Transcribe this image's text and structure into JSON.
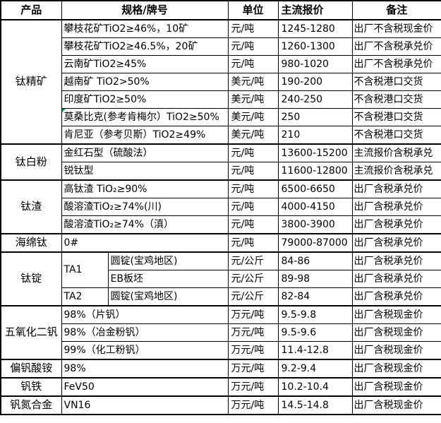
{
  "colors": {
    "grid": "#000000",
    "background": "#ffffff",
    "text": "#000000",
    "error_indicator": "#00a550"
  },
  "table": {
    "headers": {
      "product": "产品",
      "spec": "规格/牌号",
      "unit": "单位",
      "price": "主流报价",
      "note": "备注"
    },
    "rows": [
      {
        "group_start": true,
        "cells": [
          {
            "t": "钛精矿",
            "rs": 7,
            "name": "product-cell"
          },
          {
            "t": "攀枝花矿TiO2≥46%，10矿",
            "cs": 2,
            "name": "spec-cell"
          },
          {
            "t": "元/吨",
            "name": "unit-cell"
          },
          {
            "t": "1245-1280",
            "name": "price-cell"
          },
          {
            "t": "出厂不含税现金价",
            "name": "note-cell"
          }
        ]
      },
      {
        "group_start": false,
        "cells": [
          {
            "t": "攀枝花矿TiO2≥46.5%，20矿",
            "cs": 2,
            "name": "spec-cell"
          },
          {
            "t": "元/吨",
            "name": "unit-cell"
          },
          {
            "t": "1260-1300",
            "name": "price-cell"
          },
          {
            "t": "出厂不含税承兑价",
            "name": "note-cell"
          }
        ]
      },
      {
        "group_start": false,
        "cells": [
          {
            "t": "云南矿TiO2≥45%",
            "cs": 2,
            "name": "spec-cell"
          },
          {
            "t": "元/吨",
            "name": "unit-cell"
          },
          {
            "t": "980-1020",
            "name": "price-cell"
          },
          {
            "t": "出厂不含税承兑价",
            "name": "note-cell"
          }
        ]
      },
      {
        "group_start": false,
        "cells": [
          {
            "t": "越南矿 TiO2>50%",
            "cs": 2,
            "name": "spec-cell"
          },
          {
            "t": "美元/吨",
            "name": "unit-cell"
          },
          {
            "t": "190-200",
            "name": "price-cell"
          },
          {
            "t": "不含税港口交货",
            "name": "note-cell"
          }
        ]
      },
      {
        "group_start": false,
        "cells": [
          {
            "t": "印度矿TiO2≥50%",
            "cs": 2,
            "name": "spec-cell"
          },
          {
            "t": "美元/吨",
            "name": "unit-cell"
          },
          {
            "t": "240-250",
            "name": "price-cell"
          },
          {
            "t": "不含税港口交货",
            "name": "note-cell"
          }
        ]
      },
      {
        "group_start": false,
        "cells": [
          {
            "t": "莫桑比克(参考肯梅尔）TiO2≥50%",
            "cs": 2,
            "name": "spec-cell",
            "ind": true
          },
          {
            "t": "美元/吨",
            "name": "unit-cell"
          },
          {
            "t": "250",
            "name": "price-cell"
          },
          {
            "t": "不含税港口交货",
            "name": "note-cell"
          }
        ]
      },
      {
        "group_start": false,
        "cells": [
          {
            "t": "肯尼亚（参考贝斯）TiO2≥49%",
            "cs": 2,
            "name": "spec-cell"
          },
          {
            "t": "美元/吨",
            "name": "unit-cell"
          },
          {
            "t": "210",
            "name": "price-cell"
          },
          {
            "t": "不含税港口交货",
            "name": "note-cell"
          }
        ]
      },
      {
        "group_start": true,
        "cells": [
          {
            "t": "钛白粉",
            "rs": 2,
            "name": "product-cell"
          },
          {
            "t": "金红石型（硫酸法）",
            "cs": 2,
            "name": "spec-cell"
          },
          {
            "t": "元/吨",
            "name": "unit-cell"
          },
          {
            "t": "13600-15200",
            "name": "price-cell"
          },
          {
            "t": "主流报价含税承兑",
            "name": "note-cell"
          }
        ]
      },
      {
        "group_start": false,
        "cells": [
          {
            "t": "锐钛型",
            "cs": 2,
            "name": "spec-cell"
          },
          {
            "t": "元/吨",
            "name": "unit-cell"
          },
          {
            "t": "11600-12800",
            "name": "price-cell"
          },
          {
            "t": "主流报价含税承兑",
            "name": "note-cell"
          }
        ]
      },
      {
        "group_start": true,
        "cells": [
          {
            "t": "钛渣",
            "rs": 3,
            "name": "product-cell"
          },
          {
            "t": "高钛渣 TiO₂≥90%",
            "cs": 2,
            "name": "spec-cell"
          },
          {
            "t": "元/吨",
            "name": "unit-cell"
          },
          {
            "t": "6500-6650",
            "name": "price-cell"
          },
          {
            "t": "出厂含税承兑价",
            "name": "note-cell"
          }
        ]
      },
      {
        "group_start": false,
        "cells": [
          {
            "t": "酸溶渣TiO₂≥74%(川)",
            "cs": 2,
            "name": "spec-cell"
          },
          {
            "t": "元/吨",
            "name": "unit-cell"
          },
          {
            "t": "4000-4150",
            "name": "price-cell"
          },
          {
            "t": "出厂含税承兑价",
            "name": "note-cell"
          }
        ]
      },
      {
        "group_start": false,
        "cells": [
          {
            "t": "酸溶渣TiO₂≥74%（滇）",
            "cs": 2,
            "name": "spec-cell"
          },
          {
            "t": "元/吨",
            "name": "unit-cell"
          },
          {
            "t": "3800-3900",
            "name": "price-cell"
          },
          {
            "t": "出厂含税承兑价",
            "name": "note-cell"
          }
        ]
      },
      {
        "group_start": true,
        "cells": [
          {
            "t": "海绵钛",
            "name": "product-cell"
          },
          {
            "t": "0#",
            "cs": 2,
            "name": "spec-cell"
          },
          {
            "t": "元/吨",
            "name": "unit-cell"
          },
          {
            "t": "79000-87000",
            "name": "price-cell"
          },
          {
            "t": "出厂含税承兑价",
            "name": "note-cell"
          }
        ]
      },
      {
        "group_start": true,
        "cells": [
          {
            "t": "钛锭",
            "rs": 3,
            "name": "product-cell"
          },
          {
            "t": "TA1",
            "rs": 2,
            "name": "grade-cell"
          },
          {
            "t": "圆锭(宝鸡地区)",
            "name": "spec-sub-cell"
          },
          {
            "t": "元/公斤",
            "name": "unit-cell"
          },
          {
            "t": "84-86",
            "name": "price-cell"
          },
          {
            "t": "出厂含税承兑价",
            "name": "note-cell"
          }
        ]
      },
      {
        "group_start": false,
        "cells": [
          {
            "t": "EB板坯",
            "name": "spec-sub-cell"
          },
          {
            "t": "元/公斤",
            "name": "unit-cell"
          },
          {
            "t": "89-98",
            "name": "price-cell"
          },
          {
            "t": "出厂含税承兑价",
            "name": "note-cell"
          }
        ]
      },
      {
        "group_start": false,
        "cells": [
          {
            "t": "TA2",
            "name": "grade-cell"
          },
          {
            "t": "圆锭(宝鸡地区)",
            "name": "spec-sub-cell"
          },
          {
            "t": "元/公斤",
            "name": "unit-cell"
          },
          {
            "t": "82-84",
            "name": "price-cell"
          },
          {
            "t": "出厂含税承兑价",
            "name": "note-cell"
          }
        ]
      },
      {
        "group_start": true,
        "cells": [
          {
            "t": "五氧化二钒",
            "rs": 3,
            "name": "product-cell"
          },
          {
            "t": "98%（片钒）",
            "cs": 2,
            "name": "spec-cell"
          },
          {
            "t": "万元/吨",
            "name": "unit-cell"
          },
          {
            "t": "9.5-9.8",
            "name": "price-cell"
          },
          {
            "t": "出厂含税现金价",
            "name": "note-cell"
          }
        ]
      },
      {
        "group_start": false,
        "cells": [
          {
            "t": "98%（冶金粉钒）",
            "cs": 2,
            "name": "spec-cell"
          },
          {
            "t": "万元/吨",
            "name": "unit-cell"
          },
          {
            "t": "9.5-9.6",
            "name": "price-cell"
          },
          {
            "t": "出厂含税现金价",
            "name": "note-cell"
          }
        ]
      },
      {
        "group_start": false,
        "cells": [
          {
            "t": "99%（化工粉钒）",
            "cs": 2,
            "name": "spec-cell"
          },
          {
            "t": "万元/吨",
            "name": "unit-cell"
          },
          {
            "t": "11.4-12.8",
            "name": "price-cell"
          },
          {
            "t": "出厂含税现金价",
            "name": "note-cell"
          }
        ]
      },
      {
        "group_start": true,
        "cells": [
          {
            "t": "偏钒酸铵",
            "name": "product-cell"
          },
          {
            "t": "98%",
            "cs": 2,
            "name": "spec-cell"
          },
          {
            "t": "万元/吨",
            "name": "unit-cell"
          },
          {
            "t": "9.2-9.4",
            "name": "price-cell"
          },
          {
            "t": "出厂含税现金价",
            "name": "note-cell"
          }
        ]
      },
      {
        "group_start": true,
        "cells": [
          {
            "t": "钒铁",
            "name": "product-cell"
          },
          {
            "t": "FeV50",
            "cs": 2,
            "name": "spec-cell"
          },
          {
            "t": "万元/吨",
            "name": "unit-cell"
          },
          {
            "t": "10.2-10.4",
            "name": "price-cell"
          },
          {
            "t": "出厂含税现金价",
            "name": "note-cell"
          }
        ]
      },
      {
        "group_start": true,
        "cells": [
          {
            "t": "钒氮合金",
            "name": "product-cell"
          },
          {
            "t": "VN16",
            "cs": 2,
            "name": "spec-cell"
          },
          {
            "t": "万元/吨",
            "name": "unit-cell"
          },
          {
            "t": "14.5-14.8",
            "name": "price-cell"
          },
          {
            "t": "出厂含税现金价",
            "name": "note-cell"
          }
        ]
      }
    ]
  }
}
